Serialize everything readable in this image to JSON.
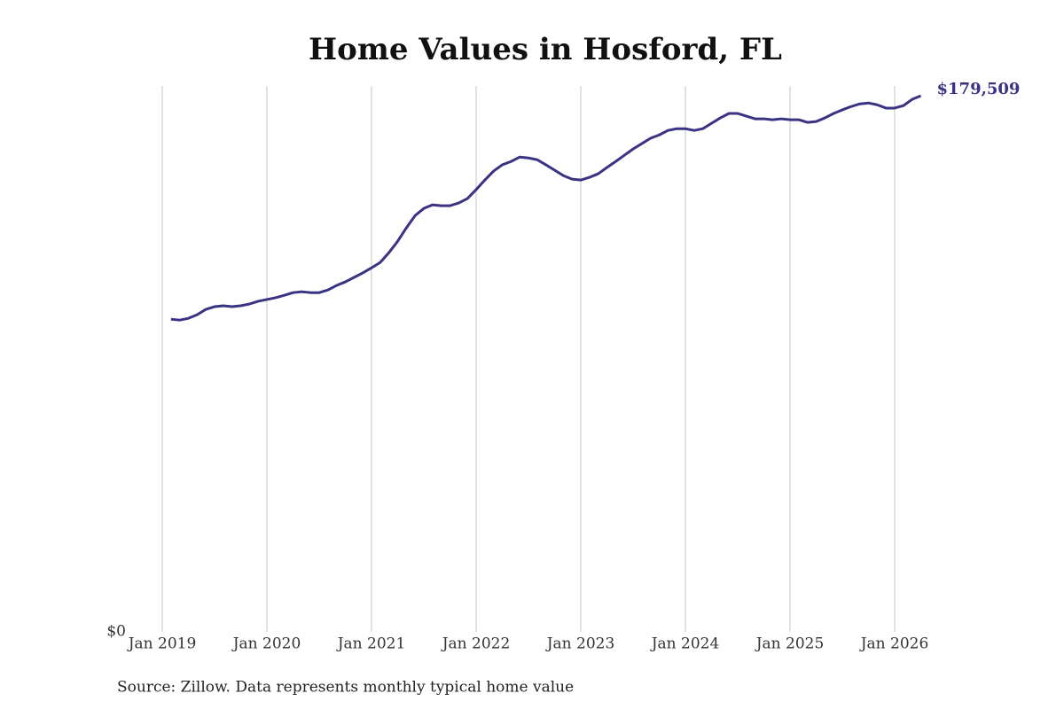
{
  "chart_data": {
    "type": "line",
    "title": "Home Values in Hosford, FL",
    "source": "Source: Zillow. Data represents monthly typical home value",
    "color": "#3a3283",
    "x": [
      "2019-02",
      "2019-03",
      "2019-04",
      "2019-05",
      "2019-06",
      "2019-07",
      "2019-08",
      "2019-09",
      "2019-10",
      "2019-11",
      "2019-12",
      "2020-01",
      "2020-02",
      "2020-03",
      "2020-04",
      "2020-05",
      "2020-06",
      "2020-07",
      "2020-08",
      "2020-09",
      "2020-10",
      "2020-11",
      "2020-12",
      "2021-01",
      "2021-02",
      "2021-03",
      "2021-04",
      "2021-05",
      "2021-06",
      "2021-07",
      "2021-08",
      "2021-09",
      "2021-10",
      "2021-11",
      "2021-12",
      "2022-01",
      "2022-02",
      "2022-03",
      "2022-04",
      "2022-05",
      "2022-06",
      "2022-07",
      "2022-08",
      "2022-09",
      "2022-10",
      "2022-11",
      "2022-12",
      "2023-01",
      "2023-02",
      "2023-03",
      "2023-04",
      "2023-05",
      "2023-06",
      "2023-07",
      "2023-08",
      "2023-09",
      "2023-10",
      "2023-11",
      "2023-12",
      "2024-01",
      "2024-02",
      "2024-03",
      "2024-04",
      "2024-05",
      "2024-06",
      "2024-07",
      "2024-08",
      "2024-09",
      "2024-10",
      "2024-11",
      "2024-12",
      "2025-01",
      "2025-02",
      "2025-03",
      "2025-04",
      "2025-05",
      "2025-06",
      "2025-07",
      "2025-08",
      "2025-09",
      "2025-10",
      "2025-11",
      "2025-12",
      "2026-01",
      "2026-02",
      "2026-03",
      "2026-04"
    ],
    "values": [
      104700,
      104400,
      105000,
      106200,
      108000,
      108900,
      109200,
      108900,
      109200,
      109800,
      110700,
      111300,
      111900,
      112700,
      113600,
      113900,
      113600,
      113600,
      114500,
      116000,
      117200,
      118700,
      120200,
      121900,
      123700,
      127000,
      130800,
      135300,
      139400,
      141800,
      143000,
      142700,
      142700,
      143600,
      145100,
      148100,
      151300,
      154300,
      156400,
      157500,
      159000,
      158700,
      158100,
      156400,
      154600,
      152800,
      151600,
      151300,
      152200,
      153400,
      155500,
      157500,
      159600,
      161700,
      163500,
      165300,
      166400,
      167900,
      168500,
      168500,
      167900,
      168500,
      170300,
      172100,
      173600,
      173600,
      172700,
      171800,
      171800,
      171500,
      171800,
      171500,
      171500,
      170600,
      170900,
      172100,
      173600,
      174800,
      175900,
      176800,
      177100,
      176500,
      175400,
      175400,
      176200,
      178300,
      179509
    ],
    "value_labels": [
      null,
      null,
      null,
      null,
      null,
      null,
      null,
      null,
      null,
      null,
      null,
      null,
      null,
      null,
      null,
      null,
      null,
      null,
      null,
      null,
      null,
      null,
      null,
      null,
      null,
      null,
      null,
      null,
      null,
      null,
      null,
      null,
      null,
      null,
      null,
      null,
      null,
      null,
      null,
      null,
      null,
      null,
      null,
      null,
      null,
      null,
      null,
      null,
      null,
      null,
      null,
      null,
      null,
      null,
      null,
      null,
      null,
      null,
      null,
      null,
      null,
      null,
      null,
      null,
      null,
      null,
      null,
      null,
      null,
      null,
      null,
      null,
      null,
      null,
      null,
      null,
      null,
      null,
      null,
      null,
      null,
      null,
      null,
      null,
      null,
      null,
      "$179,509"
    ],
    "xlim": [
      "2019-01",
      "2026-04"
    ],
    "xticks": [
      {
        "value": "2019-01",
        "label": "Jan 2019"
      },
      {
        "value": "2020-01",
        "label": "Jan 2020"
      },
      {
        "value": "2021-01",
        "label": "Jan 2021"
      },
      {
        "value": "2022-01",
        "label": "Jan 2022"
      },
      {
        "value": "2023-01",
        "label": "Jan 2023"
      },
      {
        "value": "2024-01",
        "label": "Jan 2024"
      },
      {
        "value": "2025-01",
        "label": "Jan 2025"
      },
      {
        "value": "2026-01",
        "label": "Jan 2026"
      }
    ],
    "ylim": [
      0,
      182800
    ],
    "yticks": [
      {
        "value": 0,
        "label": "$0"
      }
    ],
    "grid": true
  }
}
